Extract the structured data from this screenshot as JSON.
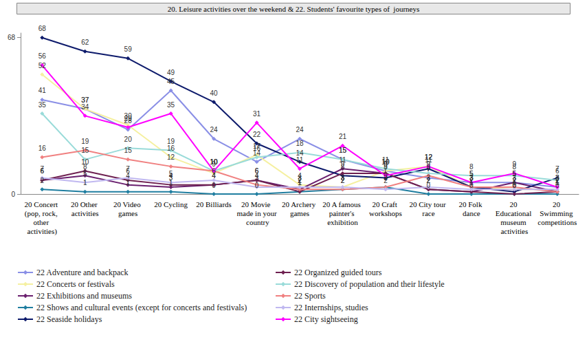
{
  "chart_data": {
    "type": "line",
    "title": "20. Leisure activities over the weekend & 22. Students' favourite types of  journeys",
    "categories": [
      "20 Concert (pop, rock, other activities)",
      "20 Other activities",
      "20 Video games",
      "20 Cycling",
      "20 Billiards",
      "20 Movie made in your country",
      "20 Archery games",
      "20 A famous painter's exhibition",
      "20 Craft workshops",
      "20 City tour race",
      "20 Folk dance",
      "20 Educational museum activities",
      "20 Swimming competitions"
    ],
    "series": [
      {
        "name": "22 Adventure and backpack",
        "color": "#8a8fe6",
        "values": [
          41,
          37,
          28,
          45,
          24,
          14,
          24,
          15,
          10,
          7,
          5,
          5,
          3
        ]
      },
      {
        "name": "22 Concerts or festivals",
        "color": "#f5f0a0",
        "values": [
          52,
          37,
          30,
          16,
          9,
          17,
          4,
          3,
          10,
          12,
          3,
          2,
          2
        ]
      },
      {
        "name": "22 Exhibitions and museums",
        "color": "#6a1f6e",
        "values": [
          6,
          8,
          4,
          3,
          4,
          6,
          2,
          11,
          9,
          2,
          1,
          5,
          1
        ]
      },
      {
        "name": "22 Shows and cultural events (except for concerts and festivals)",
        "color": "#1f7ea0",
        "values": [
          2,
          1,
          1,
          1,
          0,
          0,
          1,
          2,
          3,
          0,
          0,
          0,
          0
        ]
      },
      {
        "name": "22 Seaside holidays",
        "color": "#0d1a6b",
        "values": [
          68,
          62,
          59,
          49,
          40,
          22,
          14,
          8,
          7,
          11,
          3,
          1,
          7
        ]
      },
      {
        "name": "22 Organized guided tours",
        "color": "#6e2050",
        "values": [
          6,
          10,
          6,
          4,
          4,
          6,
          1,
          9,
          9,
          2,
          1,
          0,
          1
        ]
      },
      {
        "name": "22 Discovery of population and their lifestyle",
        "color": "#99dbd9",
        "values": [
          35,
          15,
          20,
          19,
          10,
          16,
          18,
          15,
          11,
          9,
          8,
          8,
          6
        ]
      },
      {
        "name": "22 Sports",
        "color": "#f08080",
        "values": [
          16,
          19,
          15,
          12,
          10,
          4,
          2,
          2,
          3,
          8,
          3,
          3,
          1
        ]
      },
      {
        "name": "22 Internships, studies",
        "color": "#c0b8f0",
        "values": [
          7,
          5,
          7,
          5,
          6,
          3,
          3,
          3,
          2,
          3,
          2,
          2,
          2
        ]
      },
      {
        "name": "22 City sightseeing",
        "color": "#ff00ff",
        "values": [
          56,
          34,
          29,
          35,
          10,
          31,
          11,
          21,
          8,
          12,
          5,
          9,
          3
        ]
      }
    ],
    "ylim": [
      0,
      70
    ],
    "yticks": [
      0,
      68
    ],
    "grid": false,
    "legend": "bottom",
    "data_labels": true,
    "marker": "diamond"
  }
}
